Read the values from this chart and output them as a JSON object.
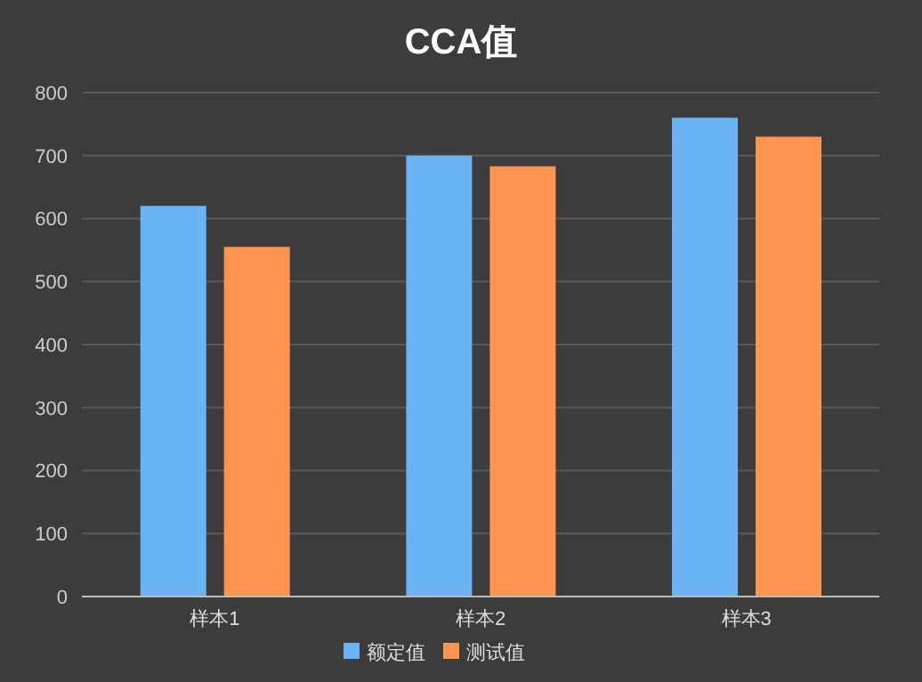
{
  "chart_data": {
    "type": "bar",
    "title": "CCA值",
    "categories": [
      "样本1",
      "样本2",
      "样本3"
    ],
    "series": [
      {
        "name": "额定值",
        "color": "#6ab4f4",
        "values": [
          620,
          700,
          760
        ]
      },
      {
        "name": "测试值",
        "color": "#ff944f",
        "values": [
          555,
          683,
          730
        ]
      }
    ],
    "ylim": [
      0,
      800
    ],
    "yticks": [
      0,
      100,
      200,
      300,
      400,
      500,
      600,
      700,
      800
    ],
    "grid": "y",
    "legend": "bottom"
  }
}
